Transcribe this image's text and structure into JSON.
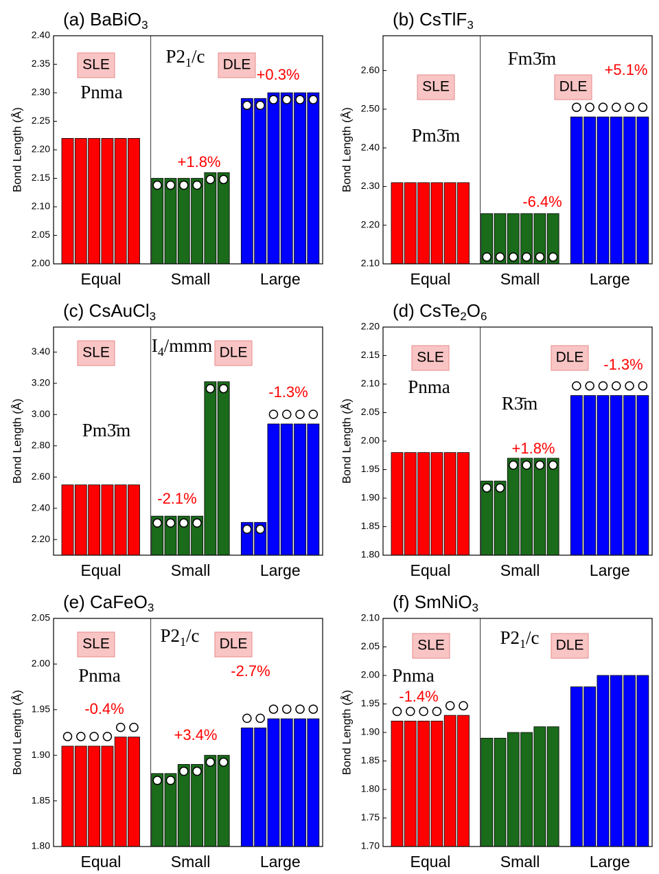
{
  "chart_data": [
    {
      "type": "bar",
      "title": [
        "(a) BaBiO",
        "3"
      ],
      "y_label": "Bond Length (Å)",
      "ylim": [
        2.0,
        2.4
      ],
      "yticks": [
        {
          "value": 2.0,
          "label": "2.00"
        },
        {
          "value": 2.05,
          "label": "2.05"
        },
        {
          "value": 2.1,
          "label": "2.10"
        },
        {
          "value": 2.15,
          "label": "2.15"
        },
        {
          "value": 2.2,
          "label": "2.20"
        },
        {
          "value": 2.25,
          "label": "2.25"
        },
        {
          "value": 2.3,
          "label": "2.30"
        },
        {
          "value": 2.35,
          "label": "2.35"
        },
        {
          "value": 2.4,
          "label": "2.40"
        }
      ],
      "groups": [
        {
          "label": "Equal",
          "color": "#ff0000",
          "values": [
            2.22,
            2.22,
            2.22,
            2.22,
            2.22,
            2.22
          ],
          "circles": [
            null,
            null,
            null,
            null,
            null,
            null
          ]
        },
        {
          "label": "Small",
          "color": "#1a6b1a",
          "values": [
            2.15,
            2.15,
            2.15,
            2.15,
            2.16,
            2.16
          ],
          "circles": [
            "top",
            "top",
            "top",
            "top",
            "top",
            "top"
          ]
        },
        {
          "label": "Large",
          "color": "#0000ff",
          "values": [
            2.29,
            2.29,
            2.3,
            2.3,
            2.3,
            2.3
          ],
          "circles": [
            "top",
            "top",
            "top",
            "top",
            "top",
            "top"
          ]
        }
      ],
      "labels": [
        "SLE",
        "DLE"
      ],
      "space_groups": [
        [
          "Pnma"
        ],
        [
          "P2",
          "1",
          "/c"
        ]
      ],
      "changes": [
        "+1.8%",
        "+0.3%"
      ]
    },
    {
      "type": "bar",
      "title": [
        "(b) CsTlF",
        "3"
      ],
      "y_label": "Bond Length (Å)",
      "ylim": [
        2.1,
        2.69
      ],
      "yticks": [
        {
          "value": 2.1,
          "label": "2.10"
        },
        {
          "value": 2.2,
          "label": "2.20"
        },
        {
          "value": 2.3,
          "label": "2.30"
        },
        {
          "value": 2.4,
          "label": "2.40"
        },
        {
          "value": 2.5,
          "label": "2.50"
        },
        {
          "value": 2.6,
          "label": "2.60"
        }
      ],
      "groups": [
        {
          "label": "Equal",
          "color": "#ff0000",
          "values": [
            2.31,
            2.31,
            2.31,
            2.31,
            2.31,
            2.31
          ],
          "circles": [
            null,
            null,
            null,
            null,
            null,
            null
          ]
        },
        {
          "label": "Small",
          "color": "#1a6b1a",
          "values": [
            2.23,
            2.23,
            2.23,
            2.23,
            2.23,
            2.23
          ],
          "circles": [
            "base",
            "base",
            "base",
            "base",
            "base",
            "base"
          ]
        },
        {
          "label": "Large",
          "color": "#0000ff",
          "values": [
            2.48,
            2.48,
            2.48,
            2.48,
            2.48,
            2.48
          ],
          "circles": [
            "above",
            "above",
            "above",
            "above",
            "above",
            "above"
          ]
        }
      ],
      "labels": [
        "SLE",
        "DLE"
      ],
      "space_groups": [
        [
          "Pm3̄m"
        ],
        [
          "Fm3̄m"
        ]
      ],
      "changes": [
        "-6.4%",
        "+5.1%"
      ]
    },
    {
      "type": "bar",
      "title": [
        "(c) CsAuCl",
        "3"
      ],
      "y_label": "Bond Length (Å)",
      "ylim": [
        2.1,
        3.56
      ],
      "yticks": [
        {
          "value": 2.2,
          "label": "2.20"
        },
        {
          "value": 2.4,
          "label": "2.40"
        },
        {
          "value": 2.6,
          "label": "2.60"
        },
        {
          "value": 2.8,
          "label": "2.80"
        },
        {
          "value": 3.0,
          "label": "3.00"
        },
        {
          "value": 3.2,
          "label": "3.20"
        },
        {
          "value": 3.4,
          "label": "3.40"
        }
      ],
      "groups": [
        {
          "label": "Equal",
          "color": "#ff0000",
          "values": [
            2.55,
            2.55,
            2.55,
            2.55,
            2.55,
            2.55
          ],
          "circles": [
            null,
            null,
            null,
            null,
            null,
            null
          ]
        },
        {
          "label": "Small",
          "color": "#1a6b1a",
          "values": [
            2.35,
            2.35,
            2.35,
            2.35,
            3.21,
            3.21
          ],
          "circles": [
            "top",
            "top",
            "top",
            "top",
            "top",
            "top"
          ]
        },
        {
          "label": "Large",
          "color": "#0000ff",
          "values": [
            2.31,
            2.31,
            2.94,
            2.94,
            2.94,
            2.94
          ],
          "circles": [
            "top",
            "top",
            "above",
            "above",
            "above",
            "above"
          ]
        }
      ],
      "labels": [
        "SLE",
        "DLE"
      ],
      "space_groups": [
        [
          "Pm3̄m"
        ],
        [
          "I",
          "4",
          "/mmm"
        ]
      ],
      "changes": [
        "-2.1%",
        "-1.3%"
      ]
    },
    {
      "type": "bar",
      "title": [
        "(d) CsTe",
        "2",
        "O",
        "6"
      ],
      "y_label": "Bond Length (Å)",
      "ylim": [
        1.8,
        2.2
      ],
      "yticks": [
        {
          "value": 1.8,
          "label": "1.80"
        },
        1.85,
        {
          "value": 1.9,
          "label": "1.90"
        },
        1.95,
        {
          "value": 2.0,
          "label": "2.00"
        },
        2.05,
        {
          "value": 2.1,
          "label": "2.10"
        },
        2.15,
        {
          "value": 2.2,
          "label": "2.20"
        }
      ],
      "groups": [
        {
          "label": "Equal",
          "color": "#ff0000",
          "values": [
            1.98,
            1.98,
            1.98,
            1.98,
            1.98,
            1.98
          ],
          "circles": [
            null,
            null,
            null,
            null,
            null,
            null
          ]
        },
        {
          "label": "Small",
          "color": "#1a6b1a",
          "values": [
            1.93,
            1.93,
            1.97,
            1.97,
            1.97,
            1.97
          ],
          "circles": [
            "top",
            "top",
            "top",
            "top",
            "top",
            "top"
          ]
        },
        {
          "label": "Large",
          "color": "#0000ff",
          "values": [
            2.08,
            2.08,
            2.08,
            2.08,
            2.08,
            2.08
          ],
          "circles": [
            "above",
            "above",
            "above",
            "above",
            "above",
            "above"
          ]
        }
      ],
      "labels": [
        "SLE",
        "DLE"
      ],
      "space_groups": [
        [
          "Pnma"
        ],
        [
          "R3̄m"
        ]
      ],
      "changes": [
        "+1.8%",
        "-1.3%"
      ]
    },
    {
      "type": "bar",
      "title": [
        "(e) CaFeO",
        "3"
      ],
      "y_label": "Bond Length (Å)",
      "ylim": [
        1.8,
        2.05
      ],
      "yticks": [
        {
          "value": 1.8,
          "label": "1.80"
        },
        1.85,
        {
          "value": 1.9,
          "label": "1.90"
        },
        1.95,
        {
          "value": 2.0,
          "label": "2.00"
        },
        2.05
      ],
      "groups": [
        {
          "label": "Equal",
          "color": "#ff0000",
          "values": [
            1.91,
            1.91,
            1.91,
            1.91,
            1.92,
            1.92
          ],
          "circles": [
            "above",
            "above",
            "above",
            "above",
            "above",
            "above"
          ]
        },
        {
          "label": "Small",
          "color": "#1a6b1a",
          "values": [
            1.88,
            1.88,
            1.89,
            1.89,
            1.9,
            1.9
          ],
          "circles": [
            "top",
            "top",
            "top",
            "top",
            "top",
            "top"
          ]
        },
        {
          "label": "Large",
          "color": "#0000ff",
          "values": [
            1.93,
            1.93,
            1.94,
            1.94,
            1.94,
            1.94
          ],
          "circles": [
            "above",
            "above",
            "above",
            "above",
            "above",
            "above"
          ]
        }
      ],
      "labels": [
        "SLE",
        "DLE"
      ],
      "space_groups": [
        [
          "Pnma"
        ],
        [
          "P2",
          "1",
          "/c"
        ]
      ],
      "changes": [
        "-0.4%",
        "+3.4%",
        "-2.7%"
      ]
    },
    {
      "type": "bar",
      "title": [
        "(f) SmNiO",
        "3"
      ],
      "y_label": "Bond Length (Å)",
      "ylim": [
        1.7,
        2.1
      ],
      "yticks": [
        {
          "value": 1.7,
          "label": "1.70"
        },
        1.75,
        {
          "value": 1.8,
          "label": "1.80"
        },
        1.85,
        {
          "value": 1.9,
          "label": "1.90"
        },
        1.95,
        {
          "value": 2.0,
          "label": "2.00"
        },
        2.05,
        {
          "value": 2.1,
          "label": "2.10"
        }
      ],
      "groups": [
        {
          "label": "Equal",
          "color": "#ff0000",
          "values": [
            1.92,
            1.92,
            1.92,
            1.92,
            1.93,
            1.93
          ],
          "circles": [
            "above",
            "above",
            "above",
            "above",
            "above",
            "above"
          ]
        },
        {
          "label": "Small",
          "color": "#1a6b1a",
          "values": [
            1.89,
            1.89,
            1.9,
            1.9,
            1.91,
            1.91
          ],
          "circles": [
            null,
            null,
            null,
            null,
            null,
            null
          ]
        },
        {
          "label": "Large",
          "color": "#0000ff",
          "values": [
            1.98,
            1.98,
            2.0,
            2.0,
            2.0,
            2.0
          ],
          "circles": [
            null,
            null,
            null,
            null,
            null,
            null
          ]
        }
      ],
      "labels": [
        "SLE",
        "DLE"
      ],
      "space_groups": [
        [
          "Pnma"
        ],
        [
          "P2",
          "1",
          "/c"
        ]
      ],
      "changes": [
        "-1.4%"
      ]
    }
  ]
}
